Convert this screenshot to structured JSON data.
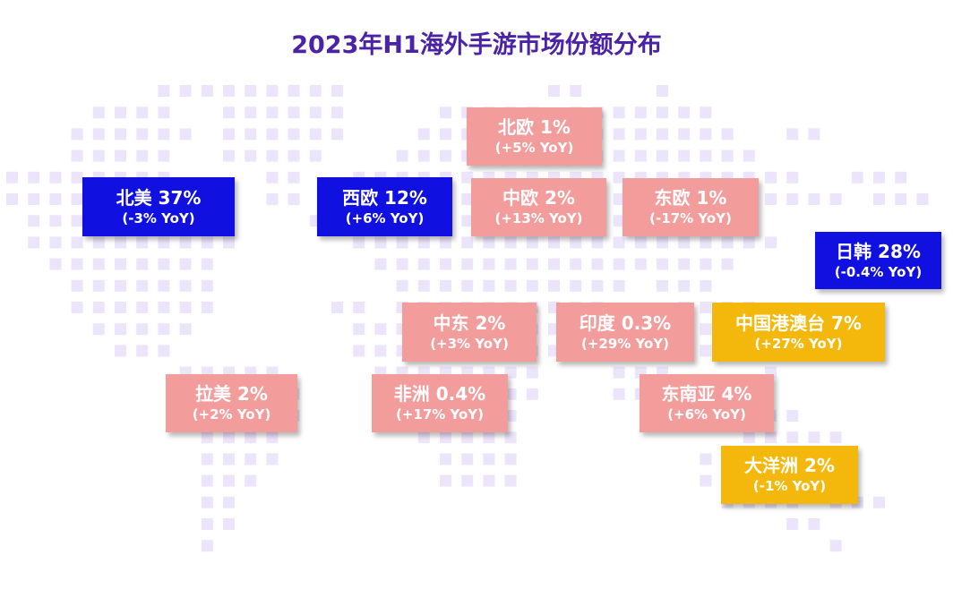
{
  "title": "2023年H1海外手游市场份额分布",
  "colors": {
    "dots": "#ece4fb",
    "blue": "#1010e0",
    "pink": "#f39c9c",
    "gold": "#f3b80b",
    "title": "#4a23a6"
  },
  "regions": [
    {
      "id": "north-america",
      "label": "北美 37%",
      "yoy": "(-3% YoY)",
      "color": "blue"
    },
    {
      "id": "western-europe",
      "label": "西欧 12%",
      "yoy": "(+6% YoY)",
      "color": "blue"
    },
    {
      "id": "northern-europe",
      "label": "北欧 1%",
      "yoy": "(+5% YoY)",
      "color": "pink"
    },
    {
      "id": "central-europe",
      "label": "中欧 2%",
      "yoy": "(+13% YoY)",
      "color": "pink"
    },
    {
      "id": "eastern-europe",
      "label": "东欧 1%",
      "yoy": "(-17% YoY)",
      "color": "pink"
    },
    {
      "id": "japan-korea",
      "label": "日韩 28%",
      "yoy": "(-0.4% YoY)",
      "color": "blue"
    },
    {
      "id": "middle-east",
      "label": "中东 2%",
      "yoy": "(+3% YoY)",
      "color": "pink"
    },
    {
      "id": "india",
      "label": "印度 0.3%",
      "yoy": "(+29% YoY)",
      "color": "pink"
    },
    {
      "id": "greater-china",
      "label": "中国港澳台 7%",
      "yoy": "(+27% YoY)",
      "color": "gold"
    },
    {
      "id": "latin-america",
      "label": "拉美 2%",
      "yoy": "(+2% YoY)",
      "color": "pink"
    },
    {
      "id": "africa",
      "label": "非洲 0.4%",
      "yoy": "(+17% YoY)",
      "color": "pink"
    },
    {
      "id": "southeast-asia",
      "label": "东南亚 4%",
      "yoy": "(+6% YoY)",
      "color": "pink"
    },
    {
      "id": "oceania",
      "label": "大洋洲 2%",
      "yoy": "(-1% YoY)",
      "color": "gold"
    }
  ]
}
